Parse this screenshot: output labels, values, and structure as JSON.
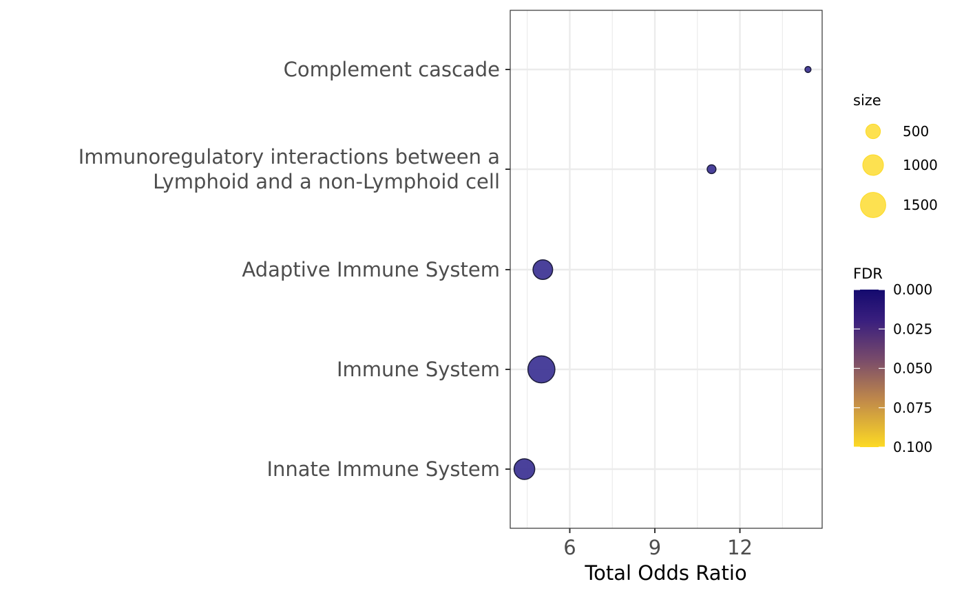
{
  "chart_data": {
    "type": "scatter",
    "xlabel": "Total Odds Ratio",
    "ylabel": "",
    "xlim": [
      3.9,
      14.9
    ],
    "x_ticks": [
      6,
      9,
      12
    ],
    "x_tick_labels": [
      "6",
      "9",
      "12"
    ],
    "x_minor_ticks": [
      4.5,
      7.5,
      10.5,
      13.5
    ],
    "grid": true,
    "categories": [
      "Complement cascade",
      "Immunoregulatory interactions between a Lymphoid and a non-Lymphoid cell",
      "Adaptive Immune System",
      "Immune System",
      "Innate Immune System"
    ],
    "category_label_lines": [
      [
        "Complement cascade"
      ],
      [
        "Immunoregulatory interactions between a",
        "Lymphoid and a non-Lymphoid cell"
      ],
      [
        "Adaptive Immune System"
      ],
      [
        "Immune System"
      ],
      [
        "Innate Immune System"
      ]
    ],
    "points": [
      {
        "category": "Complement cascade",
        "x": 14.4,
        "size": 85,
        "fdr": 0.0
      },
      {
        "category": "Immunoregulatory interactions between a Lymphoid and a non-Lymphoid cell",
        "x": 11.0,
        "size": 180,
        "fdr": 0.0
      },
      {
        "category": "Adaptive Immune System",
        "x": 5.05,
        "size": 900,
        "fdr": 0.0
      },
      {
        "category": "Immune System",
        "x": 5.0,
        "size": 1700,
        "fdr": 0.0
      },
      {
        "category": "Innate Immune System",
        "x": 4.4,
        "size": 1000,
        "fdr": 0.0
      }
    ],
    "legend": {
      "placement": "right",
      "size": {
        "title": "size",
        "values": [
          500,
          1000,
          1500
        ],
        "labels": [
          "500",
          "1000",
          "1500"
        ],
        "color": "#FDDA24"
      },
      "color": {
        "title": "FDR",
        "range": [
          0.0,
          0.1
        ],
        "ticks": [
          0.0,
          0.025,
          0.05,
          0.075,
          0.1
        ],
        "tick_labels": [
          "0.000",
          "0.025",
          "0.050",
          "0.075",
          "0.100"
        ],
        "low_color": "#140A6E",
        "high_color": "#FDDA24"
      }
    },
    "point_color": "#3B3193",
    "point_stroke": "#1c1c3a"
  }
}
